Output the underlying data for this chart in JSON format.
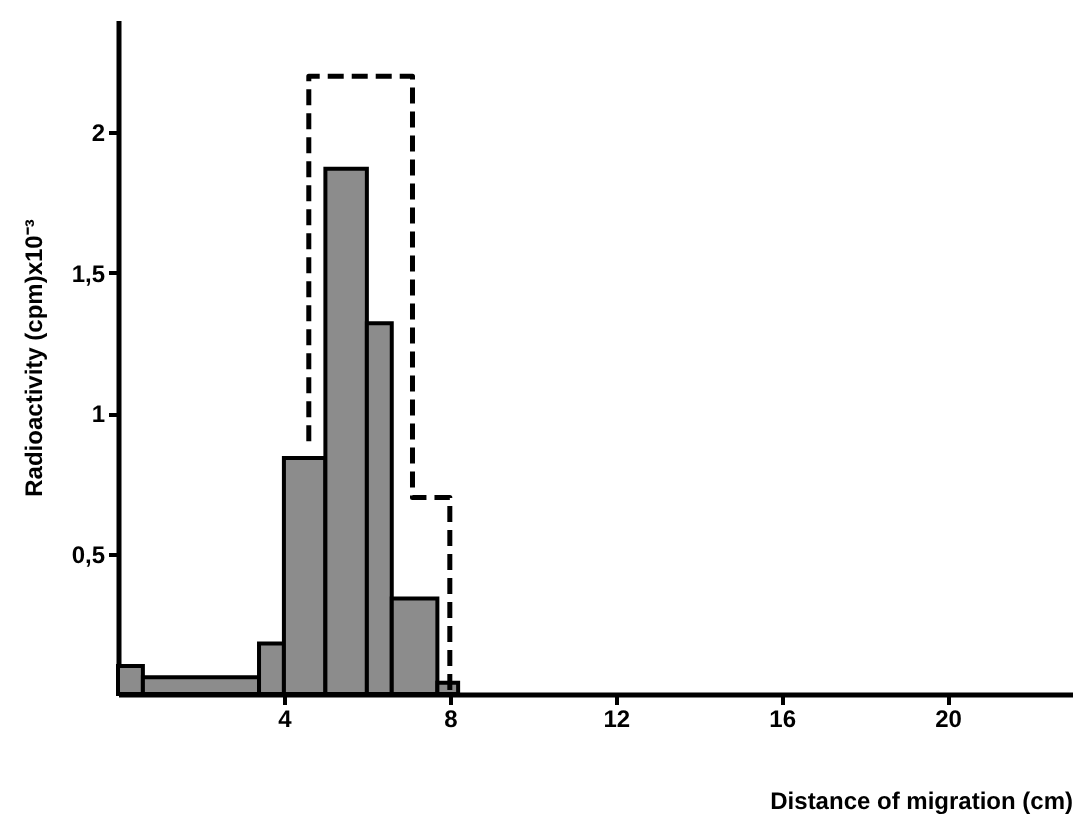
{
  "chart_data": {
    "type": "histogram",
    "xlabel": "Distance of migration  (cm)",
    "ylabel": "Radioactivity  (cpm)x10⁻³",
    "series": [
      {
        "color": "#8c8c8c",
        "bins": [
          0,
          0.6,
          3.4,
          4,
          5,
          6,
          6.6,
          7.7,
          8.2
        ],
        "values": [
          0.1,
          0.06,
          0.18,
          0.84,
          1.87,
          1.32,
          0.34,
          0.04
        ]
      },
      {
        "type": "step",
        "color": "#000000",
        "line_style": "dashed",
        "x": [
          4.6,
          4.6,
          7.1,
          8.0
        ],
        "values": [
          0.9,
          2.2,
          0.7,
          0
        ]
      }
    ],
    "xlim": [
      0,
      23
    ],
    "xticks": [
      4,
      8,
      12,
      16,
      20
    ],
    "ylim": [
      0,
      2.4
    ],
    "yticks": [
      {
        "value": 0.5,
        "label": "0,5"
      },
      1,
      {
        "value": 1.5,
        "label": "1,5"
      },
      2
    ],
    "grid": false
  }
}
